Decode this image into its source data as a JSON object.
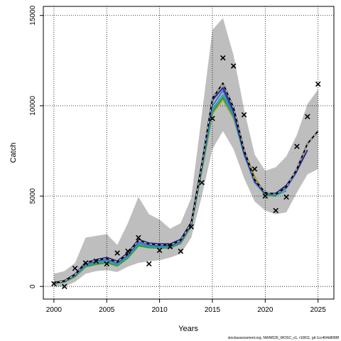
{
  "chart_data": {
    "type": "line",
    "xlabel": "Years",
    "ylabel": "Catch",
    "xlim": [
      1999,
      2026.5
    ],
    "ylim": [
      -700,
      15500
    ],
    "x_ticks": [
      2000,
      2005,
      2010,
      2015,
      2020,
      2025
    ],
    "y_ticks": [
      0,
      5000,
      10000,
      15000
    ],
    "grid": true,
    "footnote": "stockassessment.org, NWW026_WOSC_v1, r10811, git:1cc464b8088f",
    "colors": {
      "band": "#bebebe",
      "black_dashed": "#000000",
      "navy": "#2b2c8c",
      "blue": "#3f6fd6",
      "teal": "#2aa5a0",
      "green": "#2e9a3c",
      "olive": "#b5a82a",
      "observed": "#000000"
    },
    "observed": {
      "x": [
        2000,
        2001,
        2002,
        2003,
        2004,
        2005,
        2006,
        2007,
        2008,
        2009,
        2010,
        2011,
        2012,
        2013,
        2014,
        2015,
        2016,
        2017,
        2018,
        2019,
        2020,
        2021,
        2022,
        2023,
        2024,
        2025
      ],
      "y": [
        150,
        0,
        1000,
        1300,
        1400,
        1250,
        1850,
        1950,
        2700,
        1250,
        2000,
        2200,
        1950,
        3300,
        5750,
        9300,
        12650,
        12200,
        9500,
        6500,
        5000,
        4200,
        4950,
        7750,
        9400,
        11200
      ]
    },
    "band": {
      "x": [
        2000,
        2001,
        2002,
        2003,
        2004,
        2005,
        2006,
        2007,
        2008,
        2009,
        2010,
        2011,
        2012,
        2013,
        2014,
        2015,
        2016,
        2017,
        2018,
        2019,
        2020,
        2021,
        2022,
        2023,
        2024,
        2025
      ],
      "upper": [
        700,
        850,
        1300,
        2700,
        2800,
        2900,
        2300,
        3500,
        4950,
        4000,
        3700,
        3200,
        3500,
        4900,
        9500,
        14200,
        14850,
        12800,
        9800,
        7300,
        6400,
        6600,
        7200,
        8400,
        10100,
        10900
      ],
      "lower": [
        0,
        0,
        250,
        700,
        850,
        900,
        800,
        1100,
        1300,
        1400,
        1450,
        1600,
        1800,
        2700,
        5000,
        7600,
        8600,
        7600,
        6000,
        4700,
        4200,
        4000,
        4100,
        5200,
        6200,
        6500
      ]
    },
    "series": [
      {
        "x": [
          2000,
          2001,
          2002,
          2003,
          2004,
          2005,
          2006,
          2007,
          2008,
          2009,
          2010,
          2011,
          2012,
          2013,
          2014,
          2015,
          2016,
          2017,
          2018,
          2019,
          2020,
          2021,
          2022,
          2023,
          2024,
          2025
        ],
        "y": [
          200,
          300,
          650,
          1300,
          1450,
          1550,
          1350,
          1800,
          2550,
          2350,
          2300,
          2300,
          2550,
          3500,
          6750,
          10400,
          11250,
          9900,
          7550,
          5900,
          5200,
          5100,
          5500,
          6500,
          7900,
          8600
        ]
      },
      {
        "x": [
          2000,
          2001,
          2002,
          2003,
          2004,
          2005,
          2006,
          2007,
          2008,
          2009,
          2010,
          2011,
          2012,
          2013,
          2014,
          2015,
          2016,
          2017,
          2018,
          2019,
          2020,
          2021,
          2022,
          2023,
          2024
        ],
        "y": [
          200,
          320,
          680,
          1320,
          1480,
          1600,
          1400,
          1850,
          2600,
          2400,
          2350,
          2350,
          2600,
          3550,
          6800,
          10300,
          11000,
          9700,
          7400,
          5850,
          5150,
          5150,
          5600,
          6400,
          7550
        ]
      },
      {
        "x": [
          2000,
          2001,
          2002,
          2003,
          2004,
          2005,
          2006,
          2007,
          2008,
          2009,
          2010,
          2011,
          2012,
          2013,
          2014,
          2015,
          2016,
          2017,
          2018,
          2019,
          2020,
          2021,
          2022,
          2023
        ],
        "y": [
          190,
          290,
          620,
          1230,
          1380,
          1470,
          1280,
          1720,
          2430,
          2270,
          2230,
          2230,
          2480,
          3450,
          6650,
          10000,
          10850,
          9550,
          7350,
          5750,
          5150,
          5100,
          5450,
          6350
        ]
      },
      {
        "x": [
          2000,
          2001,
          2002,
          2003,
          2004,
          2005,
          2006,
          2007,
          2008,
          2009,
          2010,
          2011,
          2012,
          2013,
          2014,
          2015,
          2016,
          2017,
          2018,
          2019,
          2020,
          2021,
          2022
        ],
        "y": [
          180,
          270,
          580,
          1150,
          1300,
          1380,
          1200,
          1640,
          2330,
          2200,
          2170,
          2180,
          2430,
          3400,
          6550,
          9800,
          10600,
          9450,
          7300,
          5750,
          5100,
          5050,
          5300
        ]
      },
      {
        "x": [
          2000,
          2001,
          2002,
          2003,
          2004,
          2005,
          2006,
          2007,
          2008,
          2009,
          2010,
          2011,
          2012,
          2013,
          2014,
          2015,
          2016,
          2017,
          2018,
          2019,
          2020,
          2021
        ],
        "y": [
          170,
          250,
          550,
          1100,
          1240,
          1320,
          1150,
          1580,
          2260,
          2150,
          2130,
          2140,
          2390,
          3350,
          6450,
          9650,
          10450,
          9400,
          7300,
          5800,
          5050,
          5000
        ]
      },
      {
        "x": [
          2000,
          2001,
          2002,
          2003,
          2004,
          2005,
          2006,
          2007,
          2008,
          2009,
          2010,
          2011,
          2012,
          2013,
          2014,
          2015,
          2016,
          2017,
          2018,
          2019,
          2020
        ],
        "y": [
          160,
          240,
          530,
          1080,
          1220,
          1300,
          1130,
          1560,
          2240,
          2140,
          2120,
          2130,
          2380,
          3330,
          6400,
          9550,
          10350,
          9300,
          7500,
          6100,
          5050
        ]
      }
    ]
  }
}
